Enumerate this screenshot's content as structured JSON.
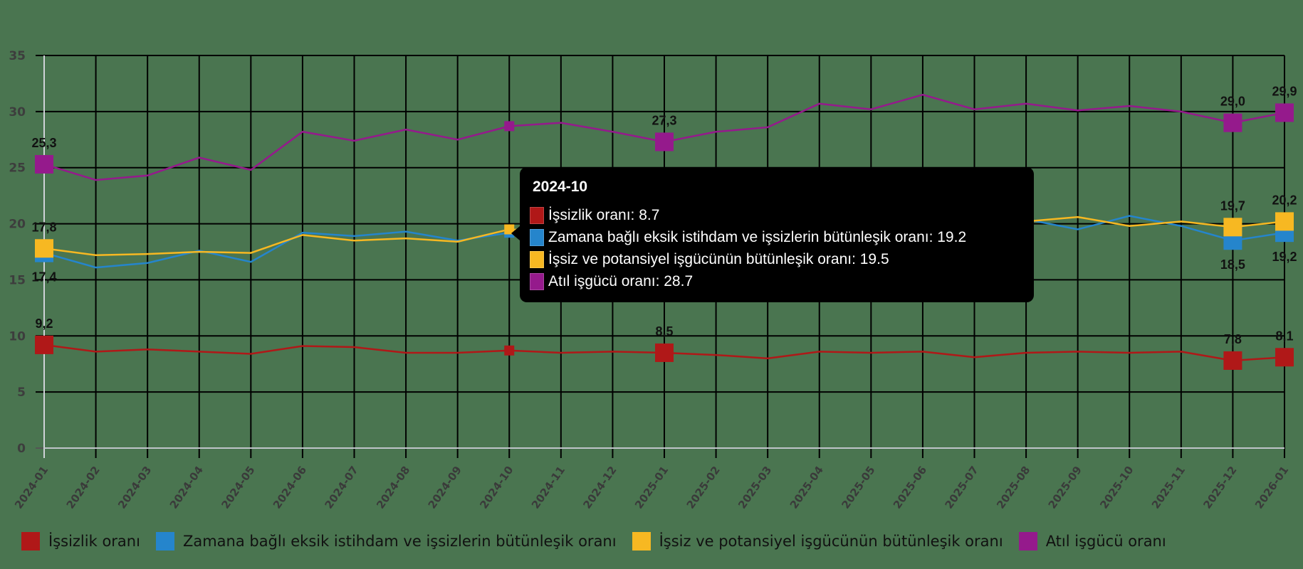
{
  "chart_data": {
    "type": "line",
    "title": "",
    "xlabel": "",
    "ylabel": "",
    "ylim": [
      0,
      35
    ],
    "yticks": [
      0,
      5,
      10,
      15,
      20,
      25,
      30,
      35
    ],
    "grid": true,
    "legend_position": "bottom",
    "categories": [
      "2024-01",
      "2024-02",
      "2024-03",
      "2024-04",
      "2024-05",
      "2024-06",
      "2024-07",
      "2024-08",
      "2024-09",
      "2024-10",
      "2024-11",
      "2024-12",
      "2025-01",
      "2025-02",
      "2025-03",
      "2025-04",
      "2025-05",
      "2025-06",
      "2025-07",
      "2025-08",
      "2025-09",
      "2025-10",
      "2025-11",
      "2025-12",
      "2026-01"
    ],
    "series": [
      {
        "name": "İşsizlik oranı",
        "color": "#b01818",
        "values": [
          9.2,
          8.6,
          8.8,
          8.6,
          8.4,
          9.1,
          9.0,
          8.5,
          8.5,
          8.7,
          8.5,
          8.6,
          8.5,
          8.3,
          8.0,
          8.6,
          8.5,
          8.6,
          8.1,
          8.5,
          8.6,
          8.5,
          8.6,
          7.8,
          8.1
        ]
      },
      {
        "name": "Zamana bağlı eksik istihdam ve işsizlerin bütünleşik oranı",
        "color": "#2585cc",
        "values": [
          17.4,
          16.1,
          16.5,
          17.6,
          16.6,
          19.2,
          18.9,
          19.3,
          18.5,
          19.2,
          19.3,
          18.8,
          17.9,
          17.8,
          17.8,
          20.3,
          19.7,
          21.7,
          20.2,
          20.4,
          19.5,
          20.7,
          19.8,
          18.5,
          19.2
        ]
      },
      {
        "name": "İşsiz ve potansiyel işgücünün bütünleşik oranı",
        "color": "#f7b822",
        "values": [
          17.8,
          17.2,
          17.3,
          17.5,
          17.4,
          19.0,
          18.5,
          18.7,
          18.4,
          19.5,
          19.3,
          19.4,
          19.2,
          19.6,
          20.1,
          20.4,
          20.2,
          20.0,
          19.7,
          20.2,
          20.6,
          19.8,
          20.2,
          19.7,
          20.2
        ]
      },
      {
        "name": "Atıl işgücü oranı",
        "color": "#951a8c",
        "values": [
          25.3,
          23.9,
          24.3,
          25.9,
          24.8,
          28.2,
          27.4,
          28.4,
          27.5,
          28.7,
          29.0,
          28.2,
          27.3,
          28.2,
          28.6,
          30.7,
          30.2,
          31.5,
          30.2,
          30.7,
          30.1,
          30.5,
          30.0,
          29.0,
          29.9
        ]
      }
    ],
    "data_labels": [
      {
        "series": 0,
        "index": 0,
        "text": "9,2",
        "pos": "above"
      },
      {
        "series": 0,
        "index": 12,
        "text": "8,5",
        "pos": "above"
      },
      {
        "series": 0,
        "index": 23,
        "text": "7,8",
        "pos": "above"
      },
      {
        "series": 0,
        "index": 24,
        "text": "8,1",
        "pos": "above"
      },
      {
        "series": 1,
        "index": 0,
        "text": "17,4",
        "pos": "below"
      },
      {
        "series": 1,
        "index": 23,
        "text": "18,5",
        "pos": "below"
      },
      {
        "series": 1,
        "index": 24,
        "text": "19,2",
        "pos": "below"
      },
      {
        "series": 2,
        "index": 0,
        "text": "17,8",
        "pos": "above"
      },
      {
        "series": 2,
        "index": 23,
        "text": "19,7",
        "pos": "above"
      },
      {
        "series": 2,
        "index": 24,
        "text": "20,2",
        "pos": "above"
      },
      {
        "series": 3,
        "index": 0,
        "text": "25,3",
        "pos": "above"
      },
      {
        "series": 3,
        "index": 12,
        "text": "27,3",
        "pos": "above"
      },
      {
        "series": 3,
        "index": 23,
        "text": "29,0",
        "pos": "above"
      },
      {
        "series": 3,
        "index": 24,
        "text": "29,9",
        "pos": "above"
      }
    ],
    "large_marker_indices": [
      0,
      12,
      23,
      24
    ],
    "hover_index": 9
  },
  "tooltip": {
    "title": "2024-10",
    "rows": [
      {
        "label": "İşsizlik oranı: 8.7",
        "color": "#b01818"
      },
      {
        "label": "Zamana bağlı eksik istihdam ve işsizlerin bütünleşik oranı: 19.2",
        "color": "#2585cc"
      },
      {
        "label": "İşsiz ve potansiyel işgücünün bütünleşik oranı: 19.5",
        "color": "#f7b822"
      },
      {
        "label": "Atıl işgücü oranı: 28.7",
        "color": "#951a8c"
      }
    ]
  },
  "legend": [
    {
      "label": "İşsizlik oranı",
      "color": "#b01818"
    },
    {
      "label": "Zamana bağlı eksik istihdam ve işsizlerin bütünleşik oranı",
      "color": "#2585cc"
    },
    {
      "label": "İşsiz ve potansiyel işgücünün bütünleşik oranı",
      "color": "#f7b822"
    },
    {
      "label": "Atıl işgücü oranı",
      "color": "#951a8c"
    }
  ]
}
